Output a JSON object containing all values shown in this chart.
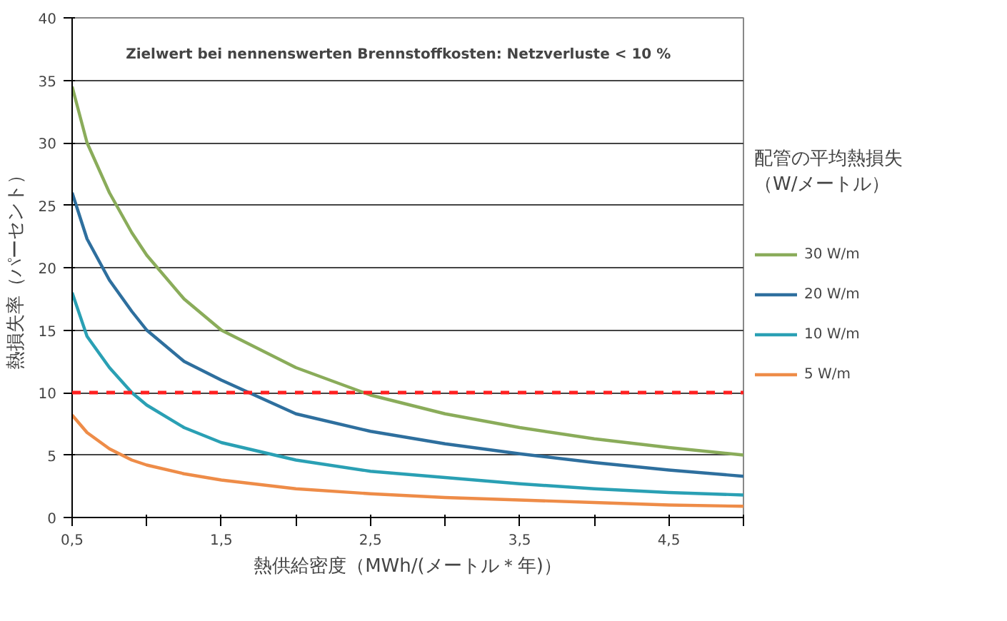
{
  "chart_data": {
    "type": "line",
    "xlabel": "熱供給密度（MWh/(メートル＊年)）",
    "ylabel": "熱損失率（パーセント）",
    "legend_title": "配管の平均熱損失（W/メートル）",
    "annotations": [
      "Zielwert  bei nennenswerten Brennstoffkosten: Netzverluste  <  10 %"
    ],
    "xlim": [
      0.5,
      5
    ],
    "ylim": [
      0,
      40
    ],
    "xticks": [
      {
        "value": 0.5,
        "label": "0,5"
      },
      {
        "value": 1,
        "label": null
      },
      {
        "value": 1.5,
        "label": "1,5"
      },
      {
        "value": 2,
        "label": null
      },
      {
        "value": 2.5,
        "label": "2,5"
      },
      {
        "value": 3,
        "label": null
      },
      {
        "value": 3.5,
        "label": "3,5"
      },
      {
        "value": 4,
        "label": null
      },
      {
        "value": 4.5,
        "label": "4,5"
      },
      {
        "value": 5,
        "label": null
      }
    ],
    "yticks": [
      0,
      5,
      10,
      15,
      20,
      25,
      30,
      35,
      40
    ],
    "x": [
      0.5,
      0.6,
      0.75,
      0.9,
      1,
      1.25,
      1.5,
      2,
      2.5,
      3,
      3.5,
      4,
      4.5,
      5
    ],
    "series": [
      {
        "name": "30 W/m",
        "color": "#8aac5a",
        "values": [
          34.5,
          30,
          26,
          22.8,
          21,
          17.5,
          15,
          12,
          9.8,
          8.3,
          7.2,
          6.3,
          5.6,
          5
        ]
      },
      {
        "name": "20 W/m",
        "color": "#2e6f9e",
        "values": [
          26,
          22.3,
          19,
          16.5,
          15,
          12.5,
          11,
          8.3,
          6.9,
          5.9,
          5.1,
          4.4,
          3.8,
          3.3
        ]
      },
      {
        "name": "10 W/m",
        "color": "#2aa0b4",
        "values": [
          18,
          14.5,
          12,
          10,
          9,
          7.2,
          6,
          4.6,
          3.7,
          3.2,
          2.7,
          2.3,
          2,
          1.8
        ]
      },
      {
        "name": "5 W/m",
        "color": "#ee8c48",
        "values": [
          8.2,
          6.8,
          5.5,
          4.6,
          4.2,
          3.5,
          3,
          2.3,
          1.9,
          1.6,
          1.4,
          1.2,
          1.0,
          0.9
        ]
      }
    ],
    "ref_lines": [
      {
        "axis": "y",
        "value": 10,
        "color": "#ff2020",
        "line_style": "dashed"
      }
    ],
    "grid": "y",
    "legend": "right",
    "marker": "none",
    "line_style": "solid"
  }
}
